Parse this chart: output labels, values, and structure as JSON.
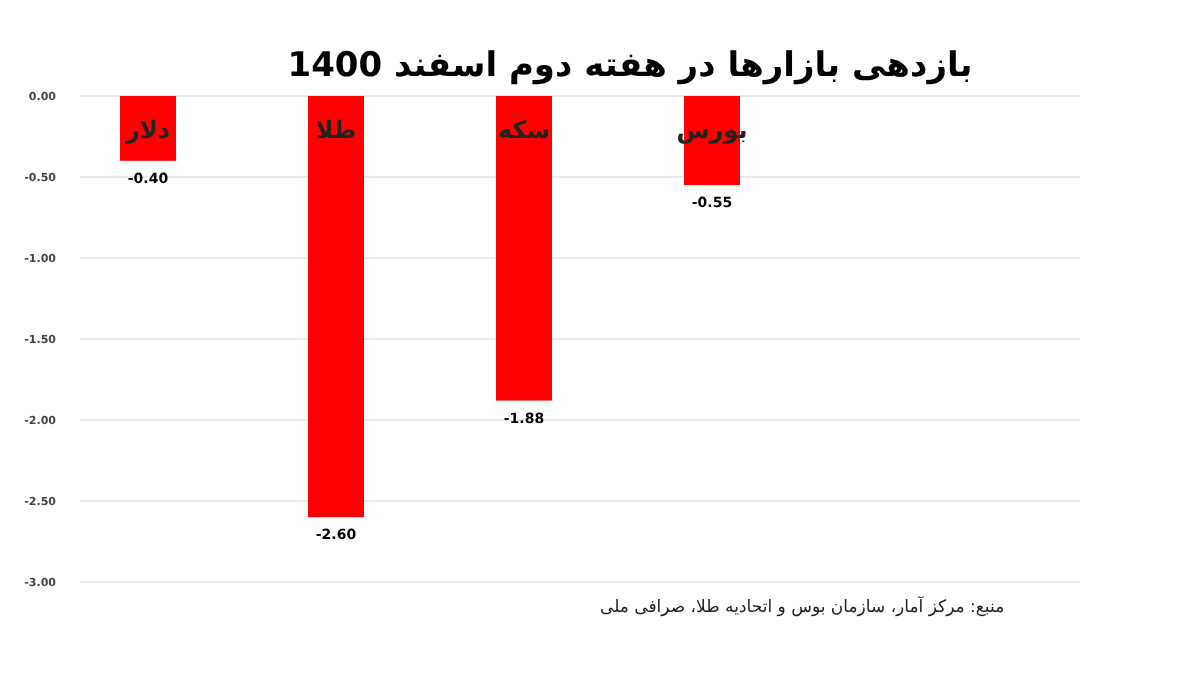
{
  "chart_data": {
    "type": "bar",
    "title": "بازدهی بازارها در هفته دوم اسفند 1400",
    "categories": [
      "دلار",
      "طلا",
      "سکه",
      "بورس"
    ],
    "values": [
      -0.4,
      -2.6,
      -1.88,
      -0.55
    ],
    "value_labels": [
      "-0.40",
      "-2.60",
      "-1.88",
      "-0.55"
    ],
    "color": "#ff0000",
    "ylim": [
      -3.0,
      0.0
    ],
    "yticks": [
      {
        "value": 0,
        "label": "0.00"
      },
      {
        "value": -0.5,
        "label": "-0.50"
      },
      {
        "value": -1.0,
        "label": "-1.00"
      },
      {
        "value": -1.5,
        "label": "-1.50"
      },
      {
        "value": -2.0,
        "label": "-2.00"
      },
      {
        "value": -2.5,
        "label": "-2.50"
      },
      {
        "value": -3.0,
        "label": "-3.00"
      }
    ],
    "grid": "y",
    "annotations": [
      "منبع: مرکز آمار، سازمان بوس و اتحادیه طلا، صرافی ملی"
    ]
  }
}
